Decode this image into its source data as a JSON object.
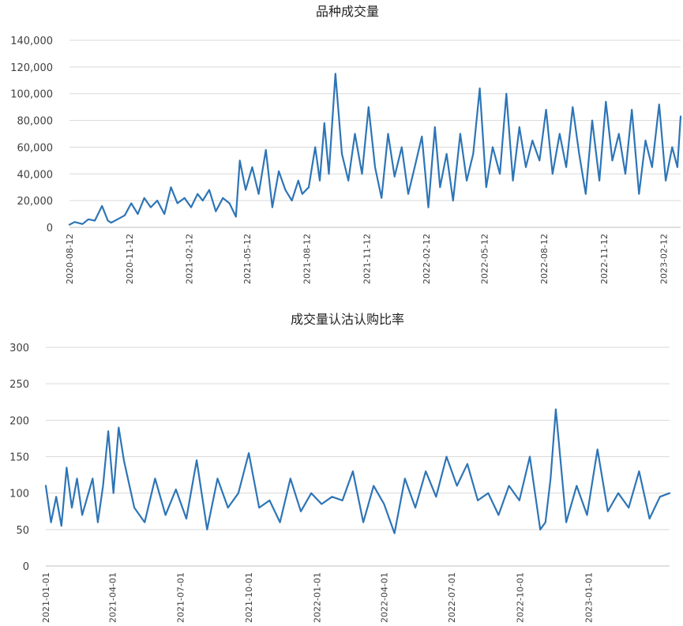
{
  "chart_data": [
    {
      "type": "line",
      "title": "品种成交量",
      "xlabel": "",
      "ylabel": "",
      "ylim": [
        0,
        140000
      ],
      "yticks": [
        0,
        20000,
        40000,
        60000,
        80000,
        100000,
        120000,
        140000
      ],
      "ytick_labels": [
        "0",
        "20,000",
        "40,000",
        "60,000",
        "80,000",
        "100,000",
        "120,000",
        "140,000"
      ],
      "xlim": [
        "2020-08-12",
        "2023-03-10"
      ],
      "xtick_labels": [
        "2020-08-12",
        "2020-11-12",
        "2021-02-12",
        "2021-05-12",
        "2021-08-12",
        "2021-11-12",
        "2022-02-12",
        "2022-05-12",
        "2022-08-12",
        "2022-11-12",
        "2023-02-12"
      ],
      "grid": true,
      "color": "#2e75b6",
      "series": [
        {
          "x": [
            "2020-08-12",
            "2020-08-20",
            "2020-09-01",
            "2020-09-10",
            "2020-09-20",
            "2020-10-01",
            "2020-10-10",
            "2020-10-15",
            "2020-10-25",
            "2020-11-05",
            "2020-11-15",
            "2020-11-25",
            "2020-12-05",
            "2020-12-15",
            "2020-12-25",
            "2021-01-05",
            "2021-01-15",
            "2021-01-25",
            "2021-02-05",
            "2021-02-15",
            "2021-02-25",
            "2021-03-05",
            "2021-03-15",
            "2021-03-25",
            "2021-04-05",
            "2021-04-15",
            "2021-04-25",
            "2021-05-01",
            "2021-05-10",
            "2021-05-20",
            "2021-05-30",
            "2021-06-10",
            "2021-06-20",
            "2021-06-30",
            "2021-07-10",
            "2021-07-20",
            "2021-07-30",
            "2021-08-05",
            "2021-08-15",
            "2021-08-25",
            "2021-09-01",
            "2021-09-08",
            "2021-09-15",
            "2021-09-25",
            "2021-10-05",
            "2021-10-15",
            "2021-10-25",
            "2021-11-05",
            "2021-11-15",
            "2021-11-25",
            "2021-12-05",
            "2021-12-15",
            "2021-12-25",
            "2022-01-05",
            "2022-01-15",
            "2022-01-25",
            "2022-02-05",
            "2022-02-15",
            "2022-02-25",
            "2022-03-05",
            "2022-03-15",
            "2022-03-25",
            "2022-04-05",
            "2022-04-15",
            "2022-04-25",
            "2022-05-05",
            "2022-05-15",
            "2022-05-25",
            "2022-06-05",
            "2022-06-15",
            "2022-06-25",
            "2022-07-05",
            "2022-07-15",
            "2022-07-25",
            "2022-08-05",
            "2022-08-15",
            "2022-08-25",
            "2022-09-05",
            "2022-09-15",
            "2022-09-25",
            "2022-10-05",
            "2022-10-15",
            "2022-10-25",
            "2022-11-05",
            "2022-11-15",
            "2022-11-25",
            "2022-12-05",
            "2022-12-15",
            "2022-12-25",
            "2023-01-05",
            "2023-01-15",
            "2023-01-25",
            "2023-02-05",
            "2023-02-15",
            "2023-02-25",
            "2023-03-05",
            "2023-03-10"
          ],
          "values": [
            2000,
            4000,
            2500,
            6000,
            5000,
            16000,
            5000,
            3500,
            6000,
            9000,
            18000,
            10000,
            22000,
            15000,
            20000,
            10000,
            30000,
            18000,
            22000,
            15000,
            25000,
            20000,
            28000,
            12000,
            22000,
            18000,
            8000,
            50000,
            28000,
            45000,
            25000,
            58000,
            15000,
            42000,
            28000,
            20000,
            35000,
            25000,
            30000,
            60000,
            35000,
            78000,
            40000,
            115000,
            55000,
            35000,
            70000,
            40000,
            90000,
            45000,
            22000,
            70000,
            38000,
            60000,
            25000,
            45000,
            68000,
            15000,
            75000,
            30000,
            55000,
            20000,
            70000,
            35000,
            55000,
            104000,
            30000,
            60000,
            40000,
            100000,
            35000,
            75000,
            45000,
            65000,
            50000,
            88000,
            40000,
            70000,
            45000,
            90000,
            55000,
            25000,
            80000,
            35000,
            94000,
            50000,
            70000,
            40000,
            88000,
            25000,
            65000,
            45000,
            92000,
            35000,
            60000,
            45000,
            83000
          ]
        }
      ]
    },
    {
      "type": "line",
      "title": "成交量认沽认购比率",
      "xlabel": "",
      "ylabel": "",
      "ylim": [
        0,
        300
      ],
      "yticks": [
        0,
        50,
        100,
        150,
        200,
        250,
        300
      ],
      "ytick_labels": [
        "0",
        "50",
        "100",
        "150",
        "200",
        "250",
        "300"
      ],
      "xlim": [
        "2021-01-01",
        "2023-04-20"
      ],
      "xtick_labels": [
        "2021-01-01",
        "2021-04-01",
        "2021-07-01",
        "2021-10-01",
        "2022-01-01",
        "2022-04-01",
        "2022-07-01",
        "2022-10-01",
        "2023-01-01"
      ],
      "grid": true,
      "color": "#2e75b6",
      "series": [
        {
          "x": [
            "2021-01-01",
            "2021-01-08",
            "2021-01-15",
            "2021-01-22",
            "2021-01-29",
            "2021-02-05",
            "2021-02-12",
            "2021-02-19",
            "2021-02-26",
            "2021-03-05",
            "2021-03-12",
            "2021-03-19",
            "2021-03-26",
            "2021-04-02",
            "2021-04-09",
            "2021-04-16",
            "2021-04-30",
            "2021-05-14",
            "2021-05-28",
            "2021-06-11",
            "2021-06-25",
            "2021-07-09",
            "2021-07-23",
            "2021-08-06",
            "2021-08-20",
            "2021-09-03",
            "2021-09-17",
            "2021-10-01",
            "2021-10-15",
            "2021-10-29",
            "2021-11-12",
            "2021-11-26",
            "2021-12-10",
            "2021-12-24",
            "2022-01-07",
            "2022-01-21",
            "2022-02-04",
            "2022-02-18",
            "2022-03-04",
            "2022-03-18",
            "2022-04-01",
            "2022-04-15",
            "2022-04-29",
            "2022-05-13",
            "2022-05-27",
            "2022-06-10",
            "2022-06-24",
            "2022-07-08",
            "2022-07-22",
            "2022-08-05",
            "2022-08-19",
            "2022-09-02",
            "2022-09-16",
            "2022-09-30",
            "2022-10-14",
            "2022-10-28",
            "2022-11-04",
            "2022-11-11",
            "2022-11-18",
            "2022-12-02",
            "2022-12-16",
            "2022-12-30",
            "2023-01-13",
            "2023-01-27",
            "2023-02-10",
            "2023-02-24",
            "2023-03-10",
            "2023-03-24",
            "2023-04-07",
            "2023-04-20"
          ],
          "values": [
            110,
            60,
            95,
            55,
            135,
            80,
            120,
            70,
            95,
            120,
            60,
            110,
            185,
            100,
            190,
            145,
            80,
            60,
            120,
            70,
            105,
            65,
            145,
            50,
            120,
            80,
            100,
            155,
            80,
            90,
            60,
            120,
            75,
            100,
            85,
            95,
            90,
            130,
            60,
            110,
            85,
            45,
            120,
            80,
            130,
            95,
            150,
            110,
            140,
            90,
            100,
            70,
            110,
            90,
            150,
            50,
            60,
            120,
            215,
            60,
            110,
            70,
            160,
            75,
            100,
            80,
            130,
            65,
            95,
            100
          ]
        }
      ]
    }
  ]
}
